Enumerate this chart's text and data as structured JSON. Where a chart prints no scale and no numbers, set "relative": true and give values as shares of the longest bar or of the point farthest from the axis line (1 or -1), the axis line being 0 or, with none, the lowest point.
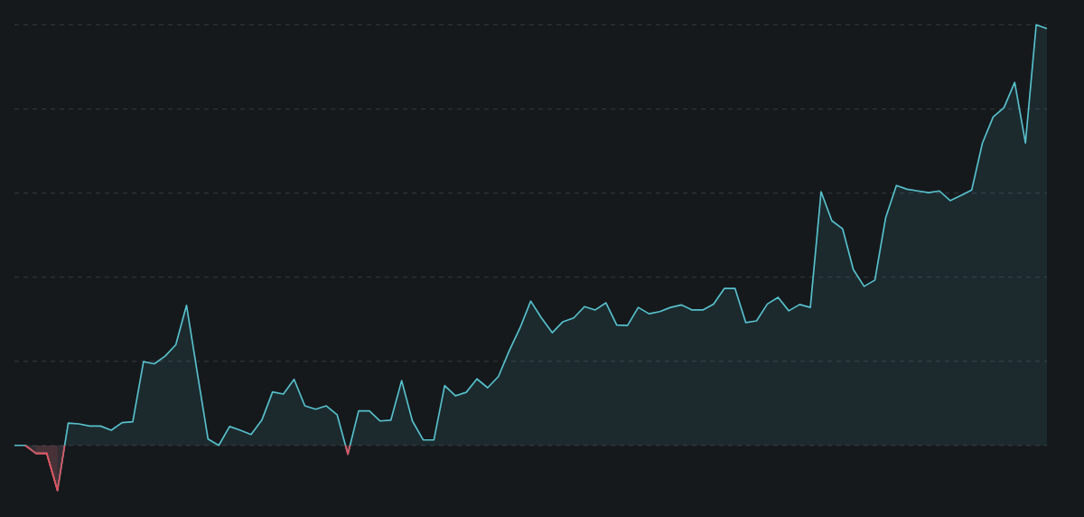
{
  "chart_data": {
    "type": "area",
    "relative": true,
    "grid": "y",
    "categories": [
      null,
      null,
      null,
      null,
      null,
      null,
      null,
      null,
      null,
      null,
      null,
      null,
      null,
      null,
      null,
      null,
      null,
      null,
      null,
      null,
      null,
      null,
      null,
      null,
      null,
      null,
      null,
      null,
      null,
      null,
      null,
      null,
      null,
      null,
      null,
      null,
      null,
      null,
      null,
      null,
      null,
      null,
      null,
      null,
      null,
      null,
      null,
      null,
      null,
      null,
      null,
      null,
      null,
      null,
      null,
      null,
      null,
      null,
      null,
      null,
      null,
      null,
      null,
      null,
      null,
      null,
      null,
      null,
      null,
      null,
      null,
      null,
      null,
      null,
      null,
      null,
      null,
      null,
      null,
      null,
      null,
      null,
      null,
      null,
      null,
      null,
      null,
      null,
      null,
      null,
      null,
      null,
      null,
      null,
      null,
      null,
      null
    ],
    "series": [
      {
        "color": "#56c1cc",
        "values": [
          0,
          0,
          -0.019,
          -0.019,
          -0.107,
          0.053,
          0.051,
          0.046,
          0.046,
          0.036,
          0.054,
          0.056,
          0.199,
          0.194,
          0.212,
          0.239,
          0.333,
          0.173,
          0.015,
          0,
          0.045,
          0.036,
          0.026,
          0.06,
          0.127,
          0.122,
          0.157,
          0.094,
          0.086,
          0.094,
          0.073,
          -0.021,
          0.082,
          0.082,
          0.058,
          0.06,
          0.154,
          0.058,
          0.013,
          0.013,
          0.142,
          0.118,
          0.126,
          0.158,
          0.137,
          0.164,
          0.225,
          0.279,
          0.343,
          0.303,
          0.268,
          0.294,
          0.303,
          0.33,
          0.322,
          0.339,
          0.286,
          0.285,
          0.328,
          0.313,
          0.318,
          0.328,
          0.334,
          0.322,
          0.322,
          0.336,
          0.373,
          0.373,
          0.292,
          0.296,
          0.336,
          0.352,
          0.32,
          0.335,
          0.328,
          0.603,
          0.534,
          0.515,
          0.418,
          0.378,
          0.393,
          0.541,
          0.618,
          0.609,
          0.605,
          0.601,
          0.605,
          0.582,
          0.594,
          0.607,
          0.719,
          0.781,
          0.803,
          0.863,
          0.719,
          1,
          0.991
        ],
        "colors": [
          "#56c1cc",
          "#56c1cc",
          "#e0505e",
          "#e0505e",
          "#e0505e",
          "#56c1cc",
          "#56c1cc",
          "#56c1cc",
          "#56c1cc",
          "#56c1cc",
          "#56c1cc",
          "#56c1cc",
          "#56c1cc",
          "#56c1cc",
          "#56c1cc",
          "#56c1cc",
          "#56c1cc",
          "#56c1cc",
          "#56c1cc",
          "#56c1cc",
          "#56c1cc",
          "#56c1cc",
          "#56c1cc",
          "#56c1cc",
          "#56c1cc",
          "#56c1cc",
          "#56c1cc",
          "#56c1cc",
          "#56c1cc",
          "#56c1cc",
          "#56c1cc",
          "#e0505e",
          "#56c1cc",
          "#56c1cc",
          "#56c1cc",
          "#56c1cc",
          "#56c1cc",
          "#56c1cc",
          "#56c1cc",
          "#56c1cc",
          "#56c1cc",
          "#56c1cc",
          "#56c1cc",
          "#56c1cc",
          "#56c1cc",
          "#56c1cc",
          "#56c1cc",
          "#56c1cc",
          "#56c1cc",
          "#56c1cc",
          "#56c1cc",
          "#56c1cc",
          "#56c1cc",
          "#56c1cc",
          "#56c1cc",
          "#56c1cc",
          "#56c1cc",
          "#56c1cc",
          "#56c1cc",
          "#56c1cc",
          "#56c1cc",
          "#56c1cc",
          "#56c1cc",
          "#56c1cc",
          "#56c1cc",
          "#56c1cc",
          "#56c1cc",
          "#56c1cc",
          "#56c1cc",
          "#56c1cc",
          "#56c1cc",
          "#56c1cc",
          "#56c1cc",
          "#56c1cc",
          "#56c1cc",
          "#56c1cc",
          "#56c1cc",
          "#56c1cc",
          "#56c1cc",
          "#56c1cc",
          "#56c1cc",
          "#56c1cc",
          "#56c1cc",
          "#56c1cc",
          "#56c1cc",
          "#56c1cc",
          "#56c1cc",
          "#56c1cc",
          "#56c1cc",
          "#56c1cc",
          "#56c1cc",
          "#56c1cc",
          "#56c1cc",
          "#56c1cc",
          "#56c1cc",
          "#56c1cc",
          "#56c1cc"
        ]
      }
    ]
  }
}
